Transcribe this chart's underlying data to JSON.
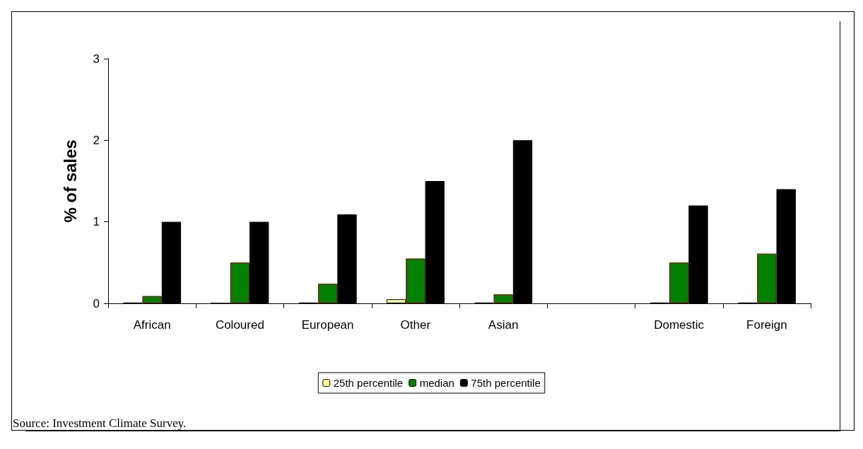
{
  "chart_data": {
    "type": "bar",
    "ylabel": "% of sales",
    "categories": [
      "African",
      "Coloured",
      "European",
      "Other",
      "Asian",
      null,
      "Domestic",
      "Foreign"
    ],
    "series": [
      {
        "name": "25th percentile",
        "color": "#ffff99",
        "values": [
          0.01,
          0,
          0.01,
          0.05,
          0.01,
          null,
          0.01,
          0.01
        ]
      },
      {
        "name": "median",
        "color": "#008000",
        "values": [
          0.09,
          0.5,
          0.24,
          0.55,
          0.11,
          null,
          0.5,
          0.61
        ]
      },
      {
        "name": "75th percentile",
        "color": "#000000",
        "values": [
          1.0,
          1.0,
          1.09,
          1.5,
          2.0,
          null,
          1.2,
          1.4
        ]
      }
    ],
    "ylim": [
      0,
      3
    ],
    "yticks": [
      0,
      1,
      2,
      3
    ],
    "grid": false,
    "legend": "bottom",
    "annotations": [
      "Source: Investment Climate Survey."
    ]
  }
}
